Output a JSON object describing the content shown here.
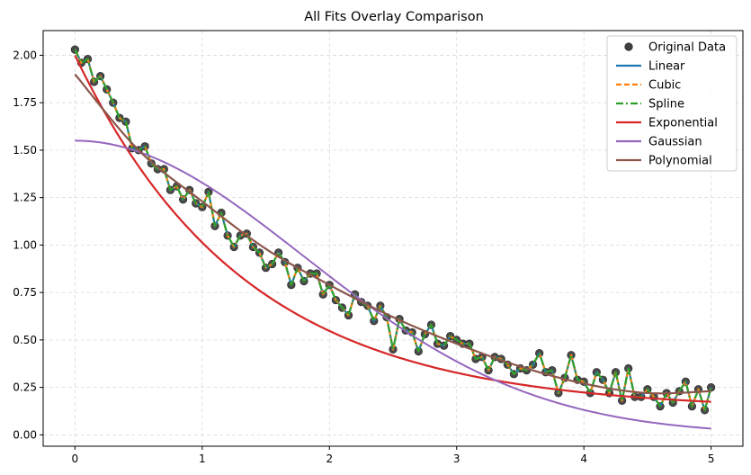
{
  "chart_data": {
    "type": "line",
    "title": "All Fits Overlay Comparison",
    "xlabel": "",
    "ylabel": "",
    "xlim": [
      -0.25,
      5.25
    ],
    "ylim": [
      -0.06,
      2.13
    ],
    "x_ticks": [
      0,
      1,
      2,
      3,
      4,
      5
    ],
    "x_tick_labels": [
      "0",
      "1",
      "2",
      "3",
      "4",
      "5"
    ],
    "y_ticks": [
      0.0,
      0.25,
      0.5,
      0.75,
      1.0,
      1.25,
      1.5,
      1.75,
      2.0
    ],
    "y_tick_labels": [
      "0.00",
      "0.25",
      "0.50",
      "0.75",
      "1.00",
      "1.25",
      "1.50",
      "1.75",
      "2.00"
    ],
    "grid": true,
    "legend_position": "top-right",
    "colors": {
      "data": "#404040",
      "linear": "#1f77b4",
      "cubic": "#ff7f0e",
      "spline": "#2ca02c",
      "exponential": "#d62728",
      "gaussian": "#9467bd",
      "polynomial": "#8c564b"
    },
    "legend": [
      {
        "label": "Original Data",
        "key": "data",
        "style": "marker"
      },
      {
        "label": "Linear",
        "key": "linear",
        "style": "solid"
      },
      {
        "label": "Cubic",
        "key": "cubic",
        "style": "dashed"
      },
      {
        "label": "Spline",
        "key": "spline",
        "style": "dashdot"
      },
      {
        "label": "Exponential",
        "key": "exponential",
        "style": "solid"
      },
      {
        "label": "Gaussian",
        "key": "gaussian",
        "style": "solid"
      },
      {
        "label": "Polynomial",
        "key": "polynomial",
        "style": "solid"
      }
    ],
    "data_points": {
      "x": [
        0.0,
        0.05,
        0.1,
        0.15,
        0.2,
        0.25,
        0.3,
        0.35,
        0.4,
        0.45,
        0.5,
        0.55,
        0.6,
        0.65,
        0.7,
        0.75,
        0.8,
        0.85,
        0.9,
        0.95,
        1.0,
        1.05,
        1.1,
        1.15,
        1.2,
        1.25,
        1.3,
        1.35,
        1.4,
        1.45,
        1.5,
        1.55,
        1.6,
        1.65,
        1.7,
        1.75,
        1.8,
        1.85,
        1.9,
        1.95,
        2.0,
        2.05,
        2.1,
        2.15,
        2.2,
        2.25,
        2.3,
        2.35,
        2.4,
        2.45,
        2.5,
        2.55,
        2.6,
        2.65,
        2.7,
        2.75,
        2.8,
        2.85,
        2.9,
        2.95,
        3.0,
        3.05,
        3.1,
        3.15,
        3.2,
        3.25,
        3.3,
        3.35,
        3.4,
        3.45,
        3.5,
        3.55,
        3.6,
        3.65,
        3.7,
        3.75,
        3.8,
        3.85,
        3.9,
        3.95,
        4.0,
        4.05,
        4.1,
        4.15,
        4.2,
        4.25,
        4.3,
        4.35,
        4.4,
        4.45,
        4.5,
        4.55,
        4.6,
        4.65,
        4.7,
        4.75,
        4.8,
        4.85,
        4.9,
        4.95,
        5.0
      ],
      "y": [
        2.03,
        1.96,
        1.98,
        1.86,
        1.89,
        1.82,
        1.75,
        1.67,
        1.65,
        1.51,
        1.5,
        1.52,
        1.43,
        1.4,
        1.4,
        1.29,
        1.31,
        1.24,
        1.29,
        1.22,
        1.2,
        1.28,
        1.1,
        1.17,
        1.05,
        0.99,
        1.05,
        1.06,
        0.99,
        0.96,
        0.88,
        0.9,
        0.96,
        0.91,
        0.79,
        0.88,
        0.81,
        0.85,
        0.85,
        0.74,
        0.79,
        0.71,
        0.67,
        0.63,
        0.74,
        0.7,
        0.68,
        0.6,
        0.68,
        0.62,
        0.45,
        0.61,
        0.55,
        0.54,
        0.44,
        0.53,
        0.58,
        0.48,
        0.47,
        0.52,
        0.5,
        0.48,
        0.48,
        0.4,
        0.41,
        0.34,
        0.41,
        0.4,
        0.37,
        0.32,
        0.35,
        0.34,
        0.37,
        0.43,
        0.33,
        0.34,
        0.22,
        0.3,
        0.42,
        0.29,
        0.28,
        0.22,
        0.33,
        0.29,
        0.22,
        0.33,
        0.18,
        0.35,
        0.2,
        0.2,
        0.24,
        0.2,
        0.15,
        0.22,
        0.17,
        0.23,
        0.28,
        0.15,
        0.24,
        0.13,
        0.25
      ]
    },
    "series": [
      {
        "name": "Linear",
        "key": "linear",
        "model": "interpolate"
      },
      {
        "name": "Cubic",
        "key": "cubic",
        "model": "interpolate"
      },
      {
        "name": "Spline",
        "key": "spline",
        "model": "interpolate"
      },
      {
        "name": "Exponential",
        "key": "exponential",
        "model": "a*exp(-b*x)+c",
        "params": {
          "a": 1.87,
          "b": 0.75,
          "c": 0.13
        }
      },
      {
        "name": "Gaussian",
        "key": "gaussian",
        "model": "a*exp(-x^2/(2*s^2))",
        "params": {
          "a": 1.55,
          "s": 1.8
        }
      },
      {
        "name": "Polynomial",
        "key": "polynomial",
        "model": "polyfit",
        "x": [
          0,
          0.5,
          1.0,
          1.5,
          2.0,
          2.5,
          3.0,
          3.5,
          4.0,
          4.5,
          5.0
        ],
        "y": [
          1.9,
          1.5,
          1.23,
          0.98,
          0.79,
          0.62,
          0.48,
          0.36,
          0.27,
          0.22,
          0.23
        ]
      }
    ]
  }
}
